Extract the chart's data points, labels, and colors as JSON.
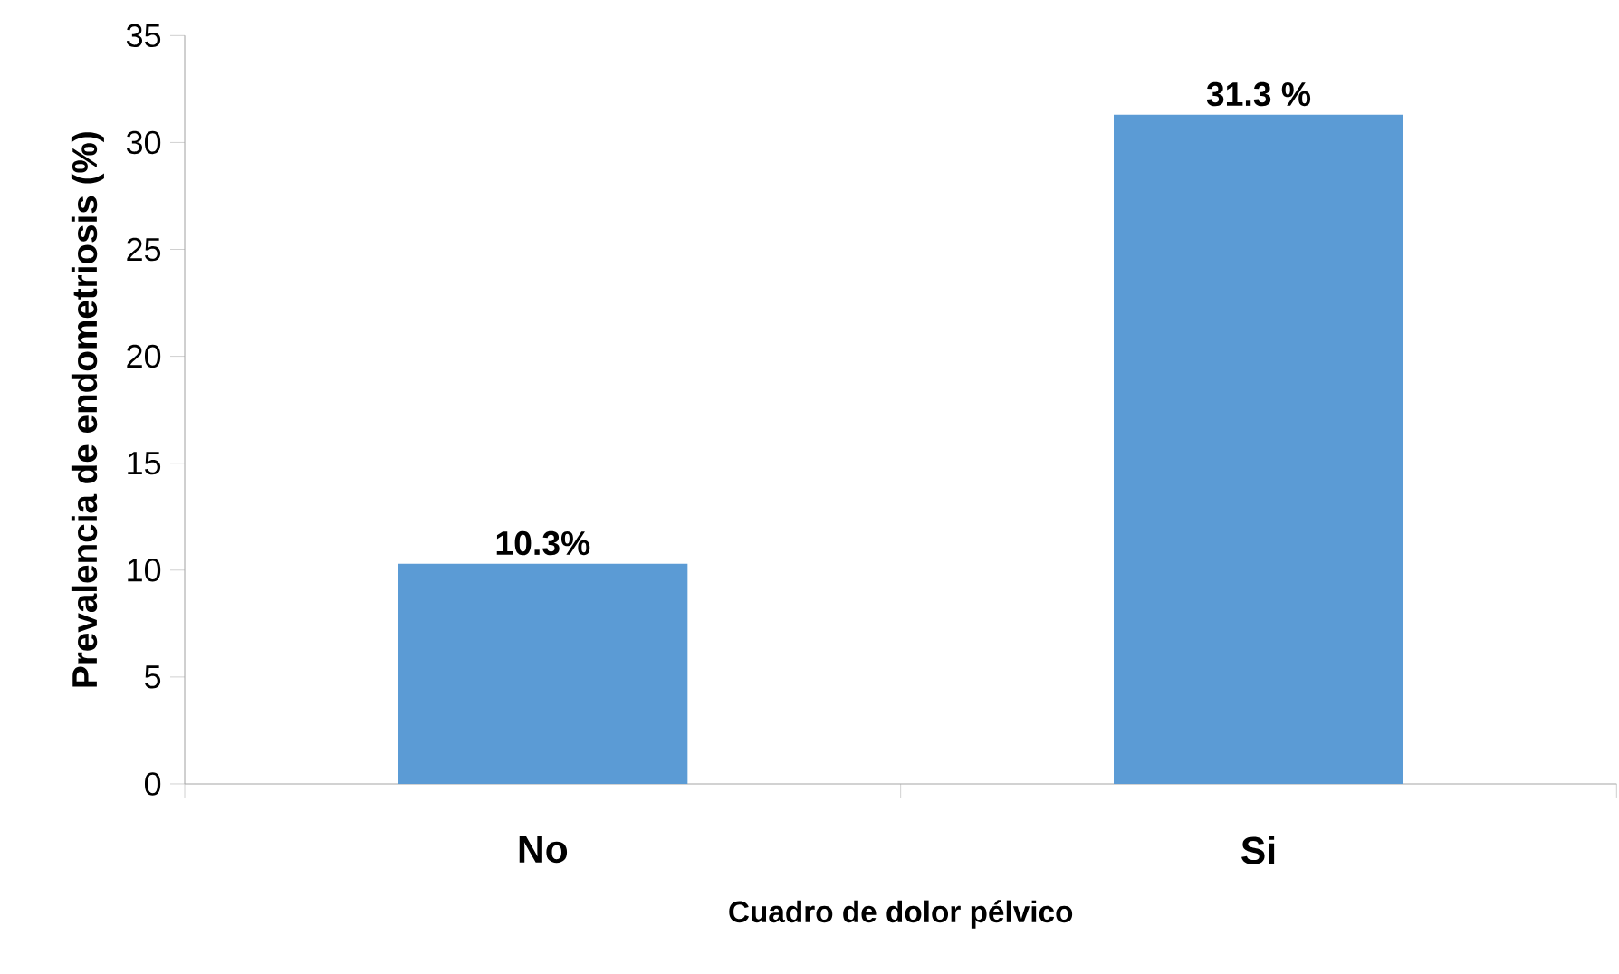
{
  "chart_data": {
    "type": "bar",
    "xlabel": "Cuadro de dolor pélvico",
    "ylabel": "Prevalencia de endometriosis (%)",
    "categories": [
      "No",
      "Si"
    ],
    "values": [
      10.3,
      31.3
    ],
    "value_labels": [
      "10.3%",
      "31.3 %"
    ],
    "color": "#5b9bd5",
    "ylim": [
      0,
      35
    ],
    "yticks": [
      0,
      5,
      10,
      15,
      20,
      25,
      30,
      35
    ],
    "grid": false
  }
}
